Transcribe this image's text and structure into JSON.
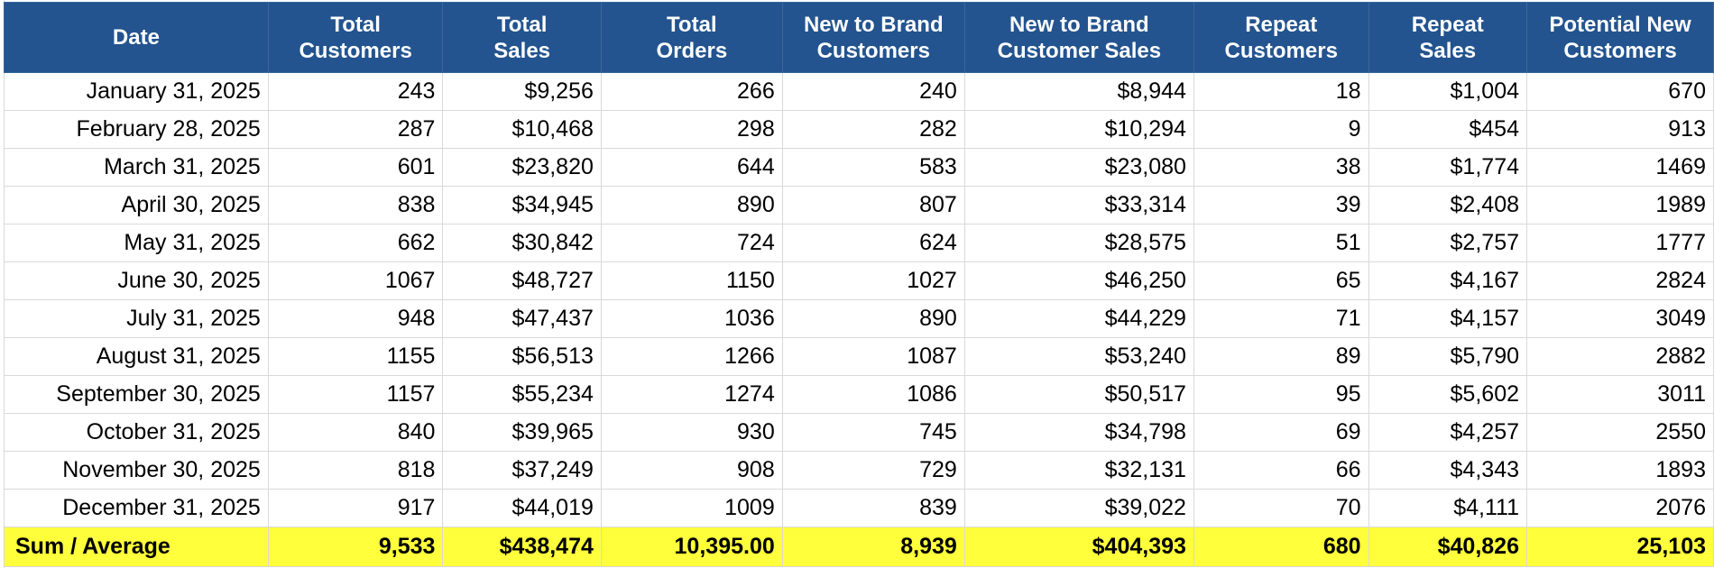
{
  "table": {
    "columns": [
      {
        "lines": [
          "Date"
        ]
      },
      {
        "lines": [
          "Total",
          "Customers"
        ]
      },
      {
        "lines": [
          "Total",
          "Sales"
        ]
      },
      {
        "lines": [
          "Total",
          "Orders"
        ]
      },
      {
        "lines": [
          "New to Brand",
          "Customers"
        ]
      },
      {
        "lines": [
          "New to Brand",
          "Customer Sales"
        ]
      },
      {
        "lines": [
          "Repeat",
          "Customers"
        ]
      },
      {
        "lines": [
          "Repeat",
          "Sales"
        ]
      },
      {
        "lines": [
          "Potential New",
          "Customers"
        ]
      }
    ],
    "rows": [
      [
        "January 31, 2025",
        "243",
        "$9,256",
        "266",
        "240",
        "$8,944",
        "18",
        "$1,004",
        "670"
      ],
      [
        "February 28, 2025",
        "287",
        "$10,468",
        "298",
        "282",
        "$10,294",
        "9",
        "$454",
        "913"
      ],
      [
        "March 31, 2025",
        "601",
        "$23,820",
        "644",
        "583",
        "$23,080",
        "38",
        "$1,774",
        "1469"
      ],
      [
        "April 30, 2025",
        "838",
        "$34,945",
        "890",
        "807",
        "$33,314",
        "39",
        "$2,408",
        "1989"
      ],
      [
        "May 31, 2025",
        "662",
        "$30,842",
        "724",
        "624",
        "$28,575",
        "51",
        "$2,757",
        "1777"
      ],
      [
        "June 30, 2025",
        "1067",
        "$48,727",
        "1150",
        "1027",
        "$46,250",
        "65",
        "$4,167",
        "2824"
      ],
      [
        "July 31, 2025",
        "948",
        "$47,437",
        "1036",
        "890",
        "$44,229",
        "71",
        "$4,157",
        "3049"
      ],
      [
        "August 31, 2025",
        "1155",
        "$56,513",
        "1266",
        "1087",
        "$53,240",
        "89",
        "$5,790",
        "2882"
      ],
      [
        "September 30, 2025",
        "1157",
        "$55,234",
        "1274",
        "1086",
        "$50,517",
        "95",
        "$5,602",
        "3011"
      ],
      [
        "October 31, 2025",
        "840",
        "$39,965",
        "930",
        "745",
        "$34,798",
        "69",
        "$4,257",
        "2550"
      ],
      [
        "November 30, 2025",
        "818",
        "$37,249",
        "908",
        "729",
        "$32,131",
        "66",
        "$4,343",
        "1893"
      ],
      [
        "December 31, 2025",
        "917",
        "$44,019",
        "1009",
        "839",
        "$39,022",
        "70",
        "$4,111",
        "2076"
      ]
    ],
    "footer": [
      "Sum / Average",
      "9,533",
      "$438,474",
      "10,395.00",
      "8,939",
      "$404,393",
      "680",
      "$40,826",
      "25,103"
    ]
  },
  "colors": {
    "header_bg": "#23548f",
    "header_text": "#ffffff",
    "footer_bg": "#ffff3c",
    "grid": "#d9d9d9"
  }
}
